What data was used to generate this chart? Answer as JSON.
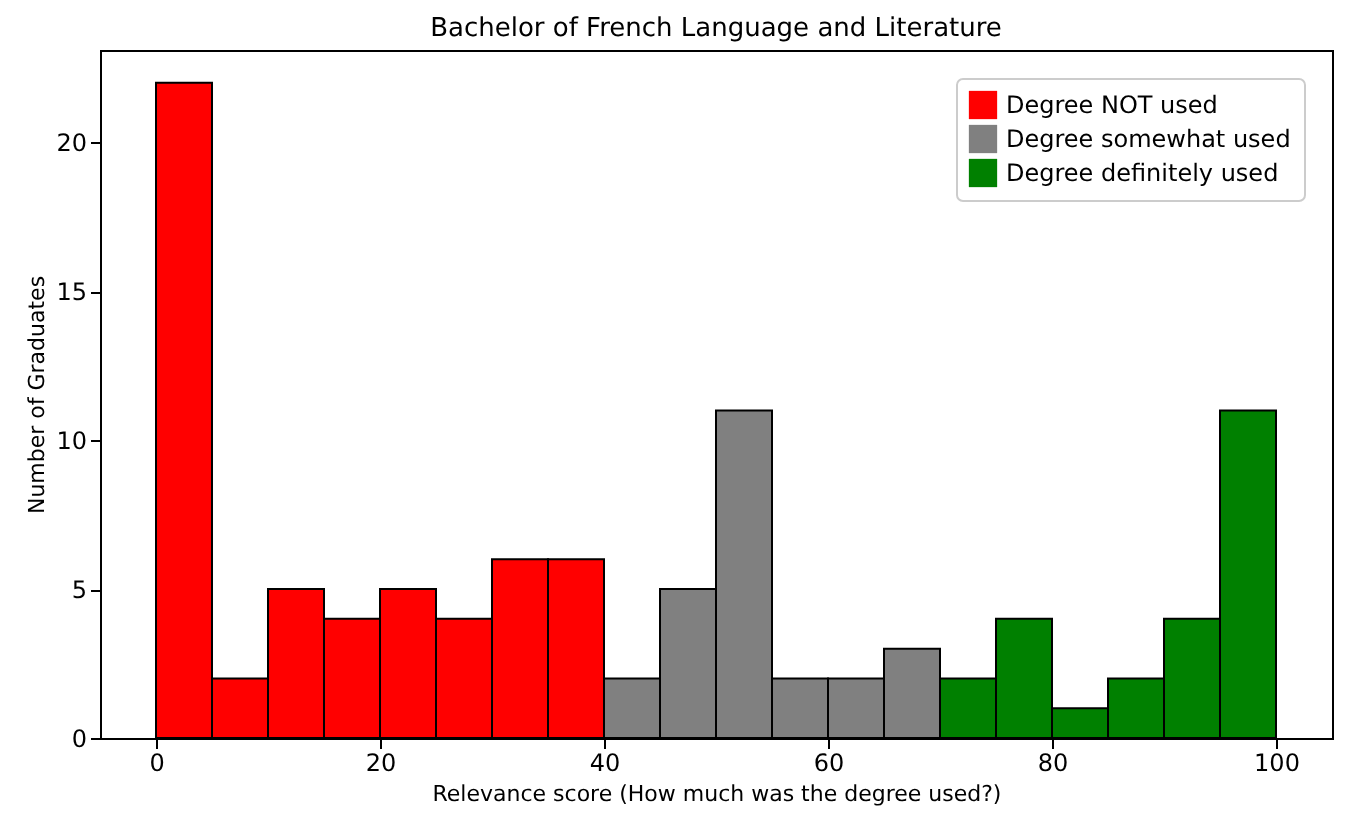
{
  "chart_data": {
    "type": "histogram",
    "title": "Bachelor of French Language and Literature",
    "xlabel": "Relevance score (How much was the degree used?)",
    "ylabel": "Number of Graduates",
    "bins": [
      0,
      5,
      10,
      15,
      20,
      25,
      30,
      35,
      40,
      45,
      50,
      55,
      60,
      65,
      70,
      75,
      80,
      85,
      90,
      95,
      100
    ],
    "series": [
      {
        "name": "Degree NOT used",
        "color": "#ff0000",
        "values": [
          22,
          2,
          5,
          4,
          5,
          4,
          6,
          6,
          null,
          null,
          null,
          null,
          null,
          null,
          null,
          null,
          null,
          null,
          null,
          null
        ]
      },
      {
        "name": "Degree somewhat used",
        "color": "#808080",
        "values": [
          null,
          null,
          null,
          null,
          null,
          null,
          null,
          null,
          2,
          5,
          11,
          2,
          2,
          3,
          null,
          null,
          null,
          null,
          null,
          null
        ]
      },
      {
        "name": "Degree definitely used",
        "color": "#008000",
        "values": [
          null,
          null,
          null,
          null,
          null,
          null,
          null,
          null,
          null,
          null,
          null,
          null,
          null,
          null,
          2,
          4,
          1,
          2,
          4,
          11
        ]
      }
    ],
    "xlim": [
      -5,
      105
    ],
    "ylim": [
      0,
      23.1
    ],
    "xticks": [
      0,
      20,
      40,
      60,
      80,
      100
    ],
    "yticks": [
      0,
      5,
      10,
      15,
      20
    ],
    "legend": "top right"
  }
}
